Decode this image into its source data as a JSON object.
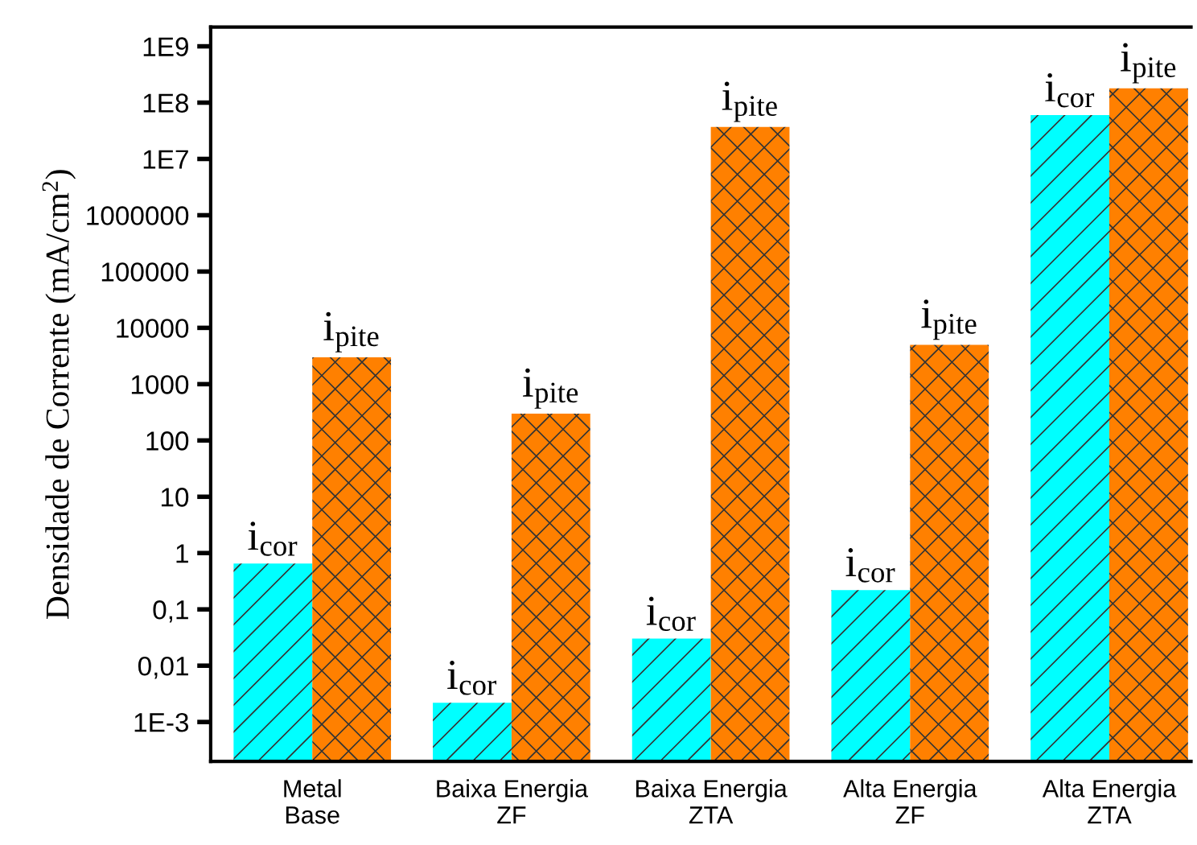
{
  "chart_data": {
    "type": "bar",
    "ylabel": "Densidade de Corrente (mA/cm$^{2}$)",
    "categories": [
      "Metal\nBase",
      "Baixa Energia\nZF",
      "Baixa Energia\nZTA",
      "Alta Energia\nZF",
      "Alta Energia\nZTA"
    ],
    "series": [
      {
        "color": "#00ffff",
        "values": [
          0.65,
          0.002,
          0.03,
          0.22,
          60000000.0
        ],
        "value_labels": [
          "i$_{cor}$",
          "i$_{cor}$",
          "i$_{cor}$",
          "i$_{cor}$",
          "i$_{cor}$"
        ]
      },
      {
        "color": "#ff8000",
        "values": [
          3000,
          300,
          37000000.0,
          5000,
          180000000.0
        ],
        "value_labels": [
          "i$_{pite}$",
          "i$_{pite}$",
          "i$_{pite}$",
          "i$_{pite}$",
          "i$_{pite}$"
        ]
      }
    ],
    "log": "y",
    "ylim": [
      0.0002,
      2200000000.0
    ],
    "yticks": [
      {
        "value": 0.001,
        "label": "1E-3"
      },
      {
        "value": 0.01,
        "label": "0,01"
      },
      {
        "value": 0.1,
        "label": "0,1"
      },
      1,
      10,
      100,
      1000,
      10000,
      100000,
      1000000,
      {
        "value": 10000000,
        "label": "1E7"
      },
      {
        "value": 100000000,
        "label": "1E8"
      },
      {
        "value": 1000000000,
        "label": "1E9"
      }
    ],
    "grid": false,
    "legend": false
  }
}
